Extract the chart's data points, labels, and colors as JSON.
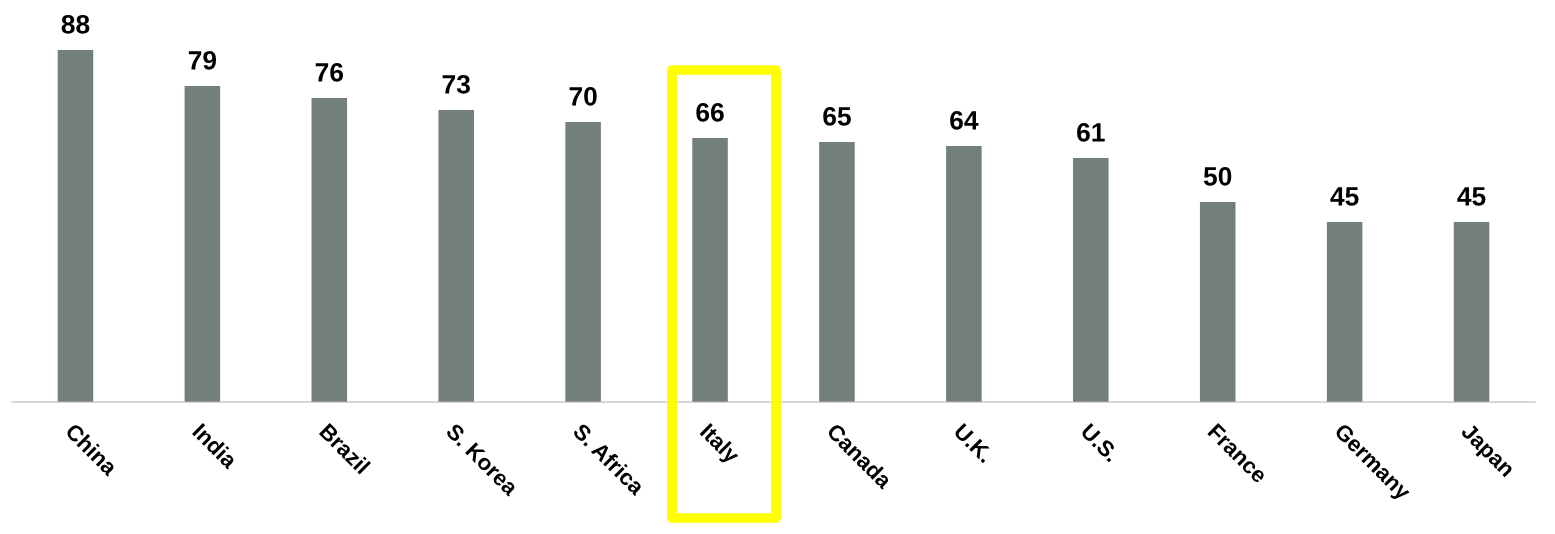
{
  "chart_data": {
    "type": "bar",
    "categories": [
      "China",
      "India",
      "Brazil",
      "S. Korea",
      "S. Africa",
      "Italy",
      "Canada",
      "U.K.",
      "U.S.",
      "France",
      "Germany",
      "Japan"
    ],
    "values": [
      88,
      79,
      76,
      73,
      70,
      66,
      65,
      64,
      61,
      50,
      45,
      45
    ],
    "color": "#737f7d",
    "data_labels": true,
    "grid": false,
    "legend": false,
    "tick_labels": "x"
  }
}
